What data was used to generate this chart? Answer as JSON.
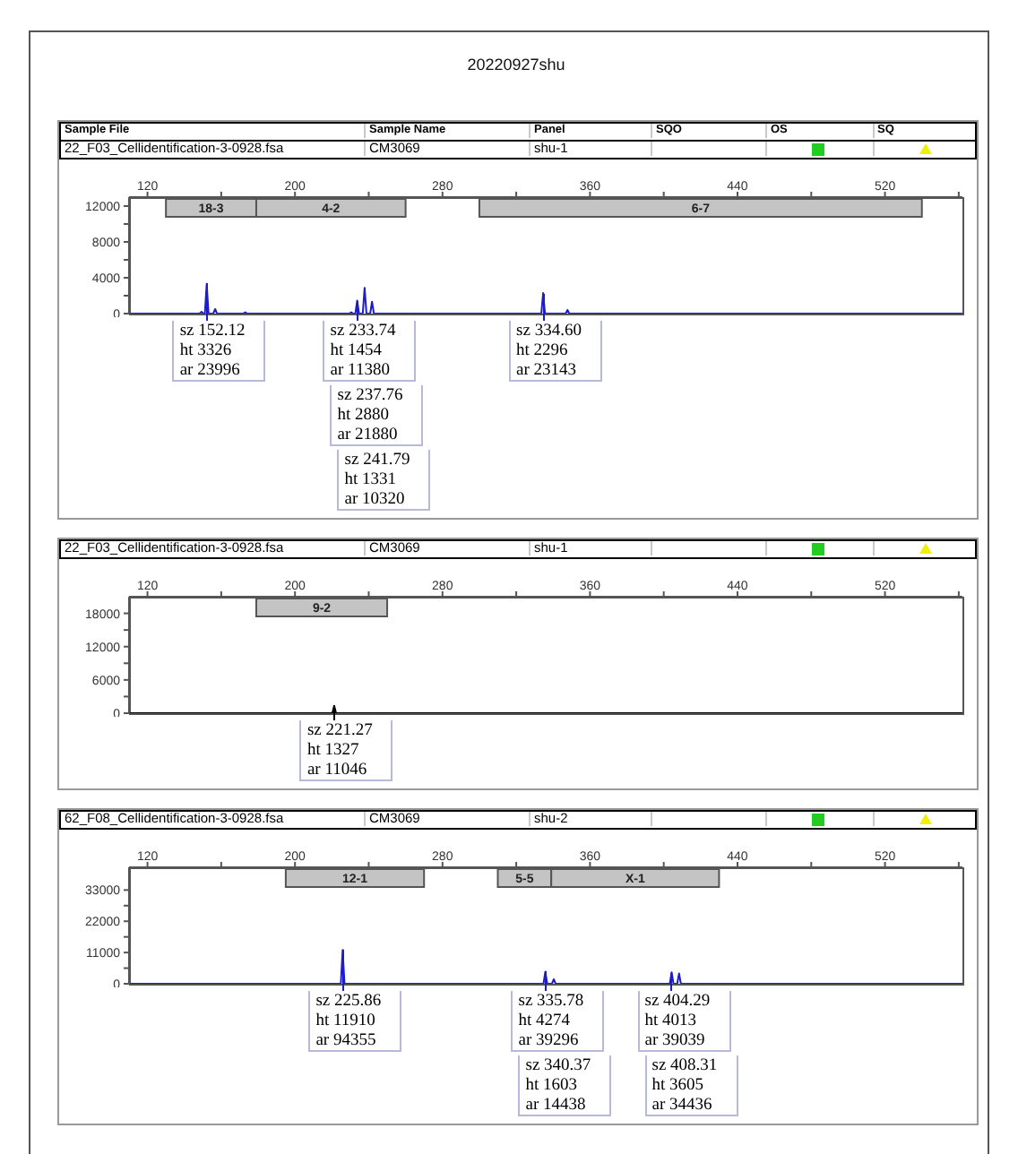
{
  "chart_data": [
    {
      "type": "line",
      "title": "20220927shu",
      "annotations": [
        "Sample File",
        "Sample Name",
        "Panel",
        "SQO",
        "OS",
        "SQ",
        "22_F03_Cellidentification-3-0928.fsa",
        "CM3069",
        "shu-1",
        {
          "text": "sz 152.12\nht 3326\nar 23996",
          "x": 152.12,
          "y": 3326
        },
        {
          "text": "sz 233.74\nht 1454\nar 11380",
          "x": 233.74,
          "y": 1454
        },
        "sz 237.76\nht 2880\nar 21880",
        "sz 241.79\nht 1331\nar 10320",
        {
          "text": "sz 334.60\nht 2296\nar 23143",
          "x": 334.6,
          "y": 2296
        }
      ],
      "bands": [
        {
          "axis": "x",
          "from": 130,
          "to": 179,
          "label": "18-3",
          "color": "#c4c4c4"
        },
        {
          "axis": "x",
          "from": 179,
          "to": 260,
          "label": "4-2",
          "color": "#c4c4c4"
        },
        {
          "axis": "x",
          "from": 300,
          "to": 540,
          "label": "6-7",
          "color": "#c4c4c4"
        }
      ],
      "xlim": [
        110,
        562
      ],
      "xticks": [
        120,
        {
          "value": 160,
          "label": null
        },
        200,
        {
          "value": 240,
          "label": null
        },
        280,
        {
          "value": 320,
          "label": null
        },
        360,
        {
          "value": 400,
          "label": null
        },
        440,
        {
          "value": 480,
          "label": null
        },
        520,
        {
          "value": 560,
          "label": null
        }
      ],
      "ylim": [
        0,
        13000
      ],
      "yticks": [
        0,
        {
          "value": 2000,
          "label": null
        },
        4000,
        {
          "value": 6000,
          "label": null
        },
        8000,
        {
          "value": 10000,
          "label": null
        },
        12000
      ],
      "series": [
        {
          "color": "#1c1cc8",
          "x": [
            110,
            148.3,
            149.3,
            150.3,
            151.12,
            152.12,
            153.12,
            155.7,
            156.7,
            157.7,
            172,
            173,
            174,
            229.5,
            230.5,
            231.5,
            232.74,
            233.74,
            234.74,
            236.76,
            237.76,
            238.76,
            240.79,
            241.79,
            242.79,
            333.6,
            334.6,
            335.6,
            346.8,
            347.8,
            348.8,
            562
          ],
          "values": [
            0,
            0,
            200,
            0,
            0,
            3326,
            0,
            0,
            500,
            0,
            0,
            150,
            0,
            0,
            150,
            0,
            0,
            1454,
            0,
            0,
            2880,
            0,
            0,
            1331,
            0,
            0,
            2296,
            0,
            0,
            400,
            0,
            0
          ]
        }
      ]
    },
    {
      "type": "line",
      "annotations": [
        "22_F03_Cellidentification-3-0928.fsa",
        "CM3069",
        "shu-1",
        {
          "text": "sz 221.27\nht 1327\nar 11046",
          "x": 221.27,
          "y": 1327
        }
      ],
      "bands": [
        {
          "axis": "x",
          "from": 179,
          "to": 250,
          "label": "9-2",
          "color": "#c4c4c4"
        }
      ],
      "xlim": [
        110,
        562
      ],
      "xticks": [
        120,
        {
          "value": 160,
          "label": null
        },
        200,
        {
          "value": 240,
          "label": null
        },
        280,
        {
          "value": 320,
          "label": null
        },
        360,
        {
          "value": 400,
          "label": null
        },
        440,
        {
          "value": 480,
          "label": null
        },
        520,
        {
          "value": 560,
          "label": null
        }
      ],
      "ylim": [
        0,
        21000
      ],
      "yticks": [
        0,
        {
          "value": 3000,
          "label": null
        },
        6000,
        {
          "value": 9000,
          "label": null
        },
        12000,
        {
          "value": 15000,
          "label": null
        },
        18000
      ],
      "series": [
        {
          "color": "#000000",
          "x": [
            110,
            220.27,
            221.27,
            222.27,
            562
          ],
          "values": [
            0,
            0,
            1327,
            0,
            0
          ]
        }
      ]
    },
    {
      "type": "line",
      "annotations": [
        "62_F08_Cellidentification-3-0928.fsa",
        "CM3069",
        "shu-2",
        {
          "text": "sz 225.86\nht 11910\nar 94355",
          "x": 225.86,
          "y": 11910
        },
        {
          "text": "sz 335.78\nht 4274\nar 39296",
          "x": 335.78,
          "y": 4274
        },
        "sz 340.37\nht 1603\nar 14438",
        {
          "text": "sz 404.29\nht 4013\nar 39039",
          "x": 404.29,
          "y": 4013
        },
        "sz 408.31\nht 3605\nar 34436"
      ],
      "bands": [
        {
          "axis": "x",
          "from": 195,
          "to": 270,
          "label": "12-1",
          "color": "#c4c4c4"
        },
        {
          "axis": "x",
          "from": 310,
          "to": 339,
          "label": "5-5",
          "color": "#c4c4c4"
        },
        {
          "axis": "x",
          "from": 339,
          "to": 430,
          "label": "X-1",
          "color": "#c4c4c4"
        }
      ],
      "xlim": [
        110,
        562
      ],
      "xticks": [
        120,
        {
          "value": 160,
          "label": null
        },
        200,
        {
          "value": 240,
          "label": null
        },
        280,
        {
          "value": 320,
          "label": null
        },
        360,
        {
          "value": 400,
          "label": null
        },
        440,
        {
          "value": 480,
          "label": null
        },
        520,
        {
          "value": 560,
          "label": null
        }
      ],
      "ylim": [
        0,
        41000
      ],
      "yticks": [
        0,
        {
          "value": 5500,
          "label": null
        },
        11000,
        {
          "value": 16500,
          "label": null
        },
        22000,
        {
          "value": 27500,
          "label": null
        },
        33000
      ],
      "series": [
        {
          "color": "#1c1cc8",
          "x": [
            110,
            224.86,
            225.86,
            226.86,
            334.78,
            335.78,
            336.78,
            339.37,
            340.37,
            341.37,
            403.29,
            404.29,
            405.29,
            407.31,
            408.31,
            409.31,
            562
          ],
          "values": [
            0,
            0,
            11910,
            0,
            0,
            4274,
            0,
            0,
            1603,
            0,
            0,
            4013,
            0,
            0,
            3605,
            0,
            0
          ]
        }
      ]
    }
  ]
}
